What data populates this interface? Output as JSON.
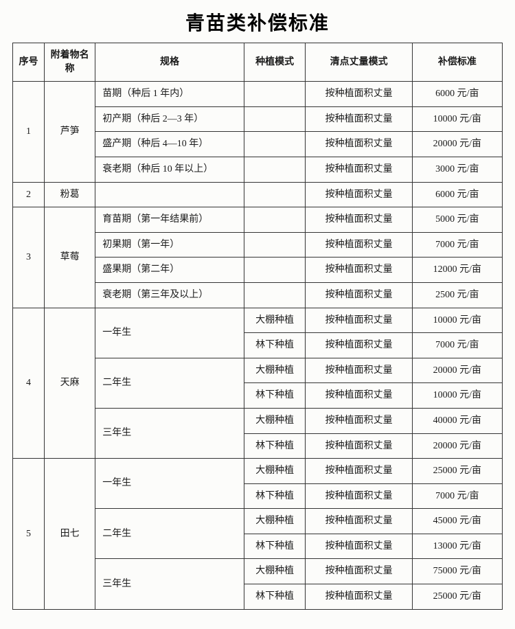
{
  "title": "青苗类补偿标准",
  "columns": {
    "idx": "序号",
    "name": "附着物名称",
    "spec": "规格",
    "mode": "种植模式",
    "meas": "清点丈量模式",
    "std": "补偿标准"
  },
  "meas_default": "按种植面积丈量",
  "items": [
    {
      "idx": "1",
      "name": "芦笋",
      "specs": [
        {
          "spec": "苗期（种后 1 年内）",
          "rows": [
            {
              "mode": "",
              "std": "6000 元/亩"
            }
          ]
        },
        {
          "spec": "初产期（种后 2—3 年）",
          "rows": [
            {
              "mode": "",
              "std": "10000 元/亩"
            }
          ]
        },
        {
          "spec": "盛产期（种后 4—10 年）",
          "rows": [
            {
              "mode": "",
              "std": "20000 元/亩"
            }
          ]
        },
        {
          "spec": "衰老期（种后 10 年以上）",
          "rows": [
            {
              "mode": "",
              "std": "3000 元/亩"
            }
          ]
        }
      ]
    },
    {
      "idx": "2",
      "name": "粉葛",
      "specs": [
        {
          "spec": "",
          "rows": [
            {
              "mode": "",
              "std": "6000 元/亩"
            }
          ]
        }
      ]
    },
    {
      "idx": "3",
      "name": "草莓",
      "specs": [
        {
          "spec": "育苗期（第一年结果前）",
          "rows": [
            {
              "mode": "",
              "std": "5000 元/亩"
            }
          ]
        },
        {
          "spec": "初果期（第一年）",
          "rows": [
            {
              "mode": "",
              "std": "7000 元/亩"
            }
          ]
        },
        {
          "spec": "盛果期（第二年）",
          "rows": [
            {
              "mode": "",
              "std": "12000 元/亩"
            }
          ]
        },
        {
          "spec": "衰老期（第三年及以上）",
          "rows": [
            {
              "mode": "",
              "std": "2500 元/亩"
            }
          ]
        }
      ]
    },
    {
      "idx": "4",
      "name": "天麻",
      "specs": [
        {
          "spec": "一年生",
          "rows": [
            {
              "mode": "大棚种植",
              "std": "10000 元/亩"
            },
            {
              "mode": "林下种植",
              "std": "7000 元/亩"
            }
          ]
        },
        {
          "spec": "二年生",
          "rows": [
            {
              "mode": "大棚种植",
              "std": "20000 元/亩"
            },
            {
              "mode": "林下种植",
              "std": "10000 元/亩"
            }
          ]
        },
        {
          "spec": "三年生",
          "rows": [
            {
              "mode": "大棚种植",
              "std": "40000 元/亩"
            },
            {
              "mode": "林下种植",
              "std": "20000 元/亩"
            }
          ]
        }
      ]
    },
    {
      "idx": "5",
      "name": "田七",
      "specs": [
        {
          "spec": "一年生",
          "rows": [
            {
              "mode": "大棚种植",
              "std": "25000 元/亩"
            },
            {
              "mode": "林下种植",
              "std": "7000 元/亩"
            }
          ]
        },
        {
          "spec": "二年生",
          "rows": [
            {
              "mode": "大棚种植",
              "std": "45000 元/亩"
            },
            {
              "mode": "林下种植",
              "std": "13000 元/亩"
            }
          ]
        },
        {
          "spec": "三年生",
          "rows": [
            {
              "mode": "大棚种植",
              "std": "75000 元/亩"
            },
            {
              "mode": "林下种植",
              "std": "25000 元/亩"
            }
          ]
        }
      ]
    }
  ]
}
